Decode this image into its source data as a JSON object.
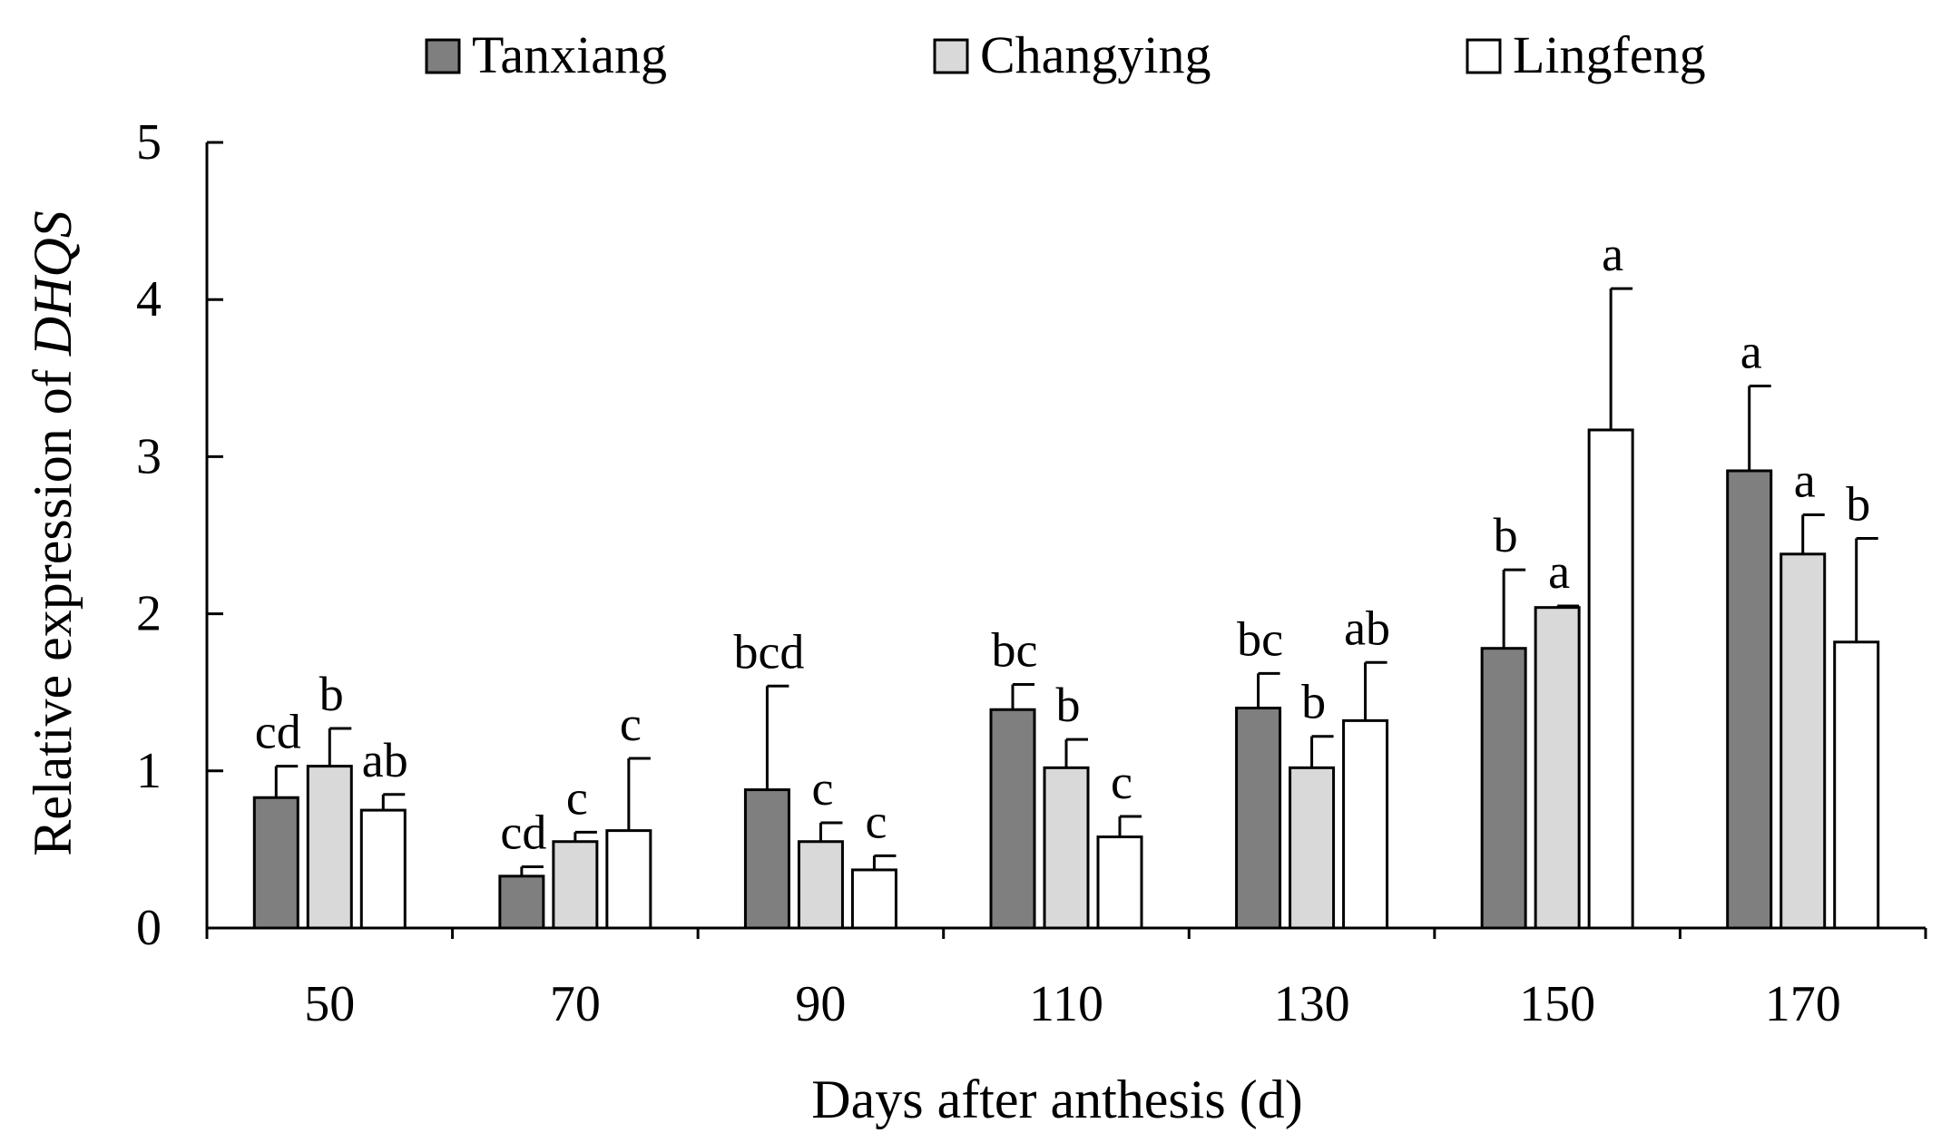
{
  "chart_data": {
    "type": "bar",
    "title": "",
    "xlabel": "Days after anthesis (d)",
    "ylabel_prefix": "Relative expression of ",
    "ylabel_gene": "DHQS",
    "ylim": [
      0,
      5
    ],
    "yticks": [
      "0",
      "1",
      "2",
      "3",
      "4",
      "5"
    ],
    "categories": [
      "50",
      "70",
      "90",
      "110",
      "130",
      "150",
      "170"
    ],
    "legend_position": "top",
    "series": [
      {
        "name": "Tanxiang",
        "color": "#7f7f7f",
        "values": [
          0.83,
          0.33,
          0.88,
          1.39,
          1.4,
          1.78,
          2.91
        ],
        "errors": [
          0.2,
          0.06,
          0.66,
          0.16,
          0.22,
          0.5,
          0.54
        ],
        "letters": [
          "cd",
          "cd",
          "bcd",
          "bc",
          "bc",
          "b",
          "a"
        ]
      },
      {
        "name": "Changying",
        "color": "#d9d9d9",
        "values": [
          1.03,
          0.55,
          0.55,
          1.02,
          1.02,
          2.04,
          2.38
        ],
        "errors": [
          0.24,
          0.06,
          0.12,
          0.18,
          0.2,
          0.01,
          0.25
        ],
        "letters": [
          "b",
          "c",
          "c",
          "b",
          "b",
          "a",
          "a"
        ]
      },
      {
        "name": "Lingfeng",
        "color": "#ffffff",
        "values": [
          0.75,
          0.62,
          0.37,
          0.58,
          1.32,
          3.17,
          1.82
        ],
        "errors": [
          0.1,
          0.46,
          0.09,
          0.13,
          0.37,
          0.9,
          0.66
        ],
        "letters": [
          "ab",
          "c",
          "c",
          "c",
          "ab",
          "a",
          "b"
        ]
      }
    ]
  }
}
